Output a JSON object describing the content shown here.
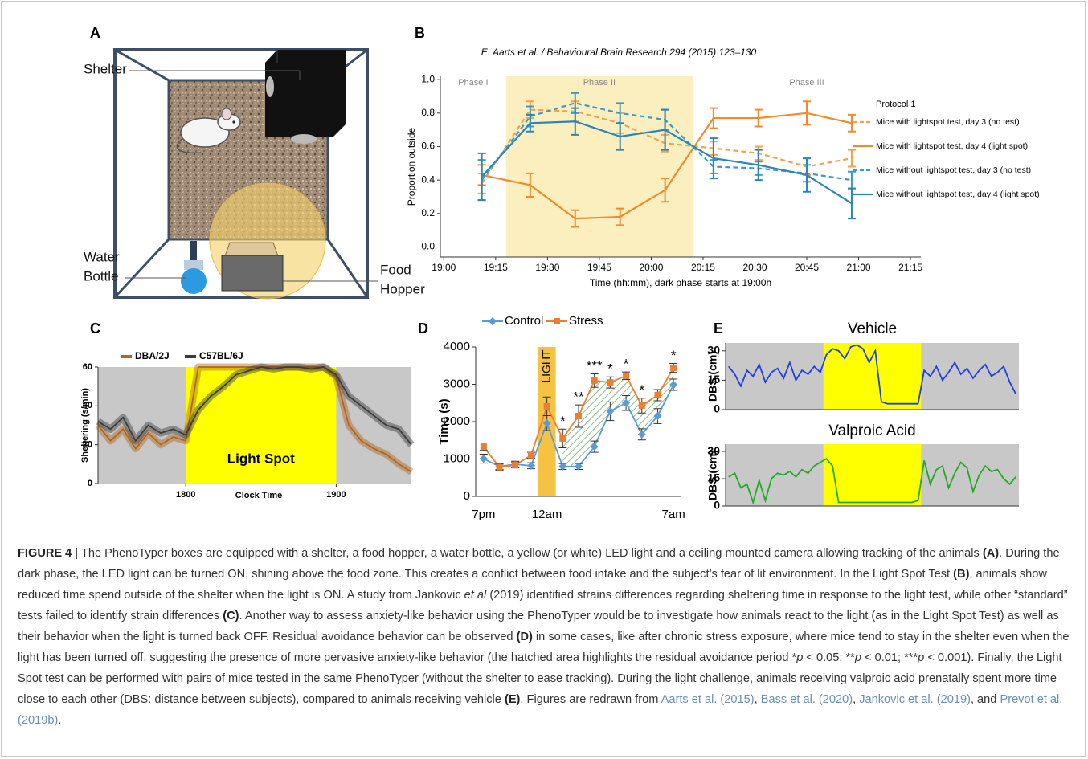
{
  "panel_labels": [
    "A",
    "B",
    "C",
    "D",
    "E"
  ],
  "panel_a": {
    "shelter": "Shelter",
    "water_bottle": [
      "Water",
      "Bottle"
    ],
    "food_hopper": [
      "Food",
      "Hopper"
    ]
  },
  "chart_data": [
    {
      "type": "line",
      "subtitle": "E. Aarts et al. / Behavioural Brain Research 294 (2015) 123–130",
      "xlabel": "Time (hh:mm), dark phase starts at 19:00h",
      "ylabel": "Proportion outside",
      "legend_title": "Protocol 1",
      "phases": [
        {
          "label": "Phase I"
        },
        {
          "label": "Phase II",
          "range": [
            1158,
            1212
          ]
        },
        {
          "label": "Phase III"
        }
      ],
      "x": [
        1151,
        1165,
        1178,
        1191,
        1204,
        1218,
        1231,
        1245,
        1258
      ],
      "xlim": [
        1139,
        1278
      ],
      "xticks": [
        {
          "value": 1140,
          "label": "19:00"
        },
        {
          "value": 1155,
          "label": "19:15"
        },
        {
          "value": 1170,
          "label": "19:30"
        },
        {
          "value": 1185,
          "label": "19:45"
        },
        {
          "value": 1200,
          "label": "20:00"
        },
        {
          "value": 1215,
          "label": "20:15"
        },
        {
          "value": 1230,
          "label": "20:30"
        },
        {
          "value": 1245,
          "label": "20:45"
        },
        {
          "value": 1260,
          "label": "21:00"
        },
        {
          "value": 1275,
          "label": "21:15"
        }
      ],
      "ylim": [
        -0.06,
        1.02
      ],
      "yticks": [
        {
          "value": 0,
          "label": "0.0"
        },
        0.2,
        0.4,
        0.6,
        0.8,
        {
          "value": 1,
          "label": "1.0"
        }
      ],
      "series": [
        {
          "name": "Mice with lightspot test, day 3 (no test)",
          "color": "#f5a04c",
          "dashed": true,
          "values": [
            0.38,
            0.82,
            0.81,
            0.74,
            0.62,
            0.59,
            0.56,
            0.48,
            0.53
          ],
          "errors": [
            0.06,
            0.05,
            0.06,
            0.06,
            0.05,
            0.04,
            0.04,
            0.05,
            0.05
          ]
        },
        {
          "name": "Mice with lightspot test, day 4 (light spot)",
          "color": "#f08a2b",
          "dashed": false,
          "values": [
            0.43,
            0.37,
            0.17,
            0.18,
            0.34,
            0.77,
            0.77,
            0.8,
            0.74
          ],
          "errors": [
            0.06,
            0.07,
            0.05,
            0.05,
            0.07,
            0.06,
            0.05,
            0.07,
            0.05
          ]
        },
        {
          "name": "Mice without lightspot test, day 3 (no test)",
          "color": "#3a9cc6",
          "dashed": true,
          "values": [
            0.4,
            0.78,
            0.86,
            0.8,
            0.76,
            0.48,
            0.47,
            0.44,
            0.4
          ],
          "errors": [
            0.12,
            0.06,
            0.06,
            0.06,
            0.06,
            0.04,
            0.04,
            0.05,
            0.05
          ]
        },
        {
          "name": "Mice without lightspot test, day 4 (light spot)",
          "color": "#2a86b8",
          "dashed": false,
          "values": [
            0.42,
            0.74,
            0.75,
            0.66,
            0.7,
            0.53,
            0.49,
            0.43,
            0.26
          ],
          "errors": [
            0.14,
            0.05,
            0.08,
            0.08,
            0.12,
            0.12,
            0.09,
            0.1,
            0.09
          ]
        }
      ]
    },
    {
      "type": "line",
      "xlabel": "Clock Time",
      "ylabel": "Sheltering (s/min)",
      "highlight": {
        "label": "Light Spot",
        "range": [
          1080,
          1140
        ]
      },
      "x": [
        1045,
        1050,
        1055,
        1060,
        1065,
        1070,
        1075,
        1080,
        1085,
        1090,
        1095,
        1100,
        1105,
        1110,
        1115,
        1120,
        1125,
        1130,
        1135,
        1140,
        1145,
        1150,
        1155,
        1160,
        1165,
        1170
      ],
      "xlim": [
        1045,
        1170
      ],
      "xticks": [
        {
          "value": 1080,
          "label": "1800"
        },
        {
          "value": 1140,
          "label": "1900"
        }
      ],
      "ylim": [
        0,
        60
      ],
      "yticks": [
        0,
        20,
        40,
        60
      ],
      "series": [
        {
          "name": "DBA/2J",
          "color": "#b0651e",
          "values": [
            30,
            22,
            28,
            18,
            26,
            20,
            24,
            22,
            60,
            60,
            60,
            60,
            60,
            60,
            60,
            60,
            60,
            60,
            60,
            55,
            30,
            22,
            18,
            15,
            10,
            6
          ]
        },
        {
          "name": "C57BL/6J",
          "color": "#3c3c3c",
          "values": [
            32,
            28,
            34,
            22,
            30,
            26,
            28,
            25,
            38,
            45,
            50,
            56,
            58,
            60,
            59,
            60,
            60,
            59,
            60,
            56,
            45,
            40,
            35,
            30,
            28,
            20
          ]
        }
      ]
    },
    {
      "type": "line",
      "ylabel": "Time (s)",
      "highlight": {
        "label": "LIGHT",
        "index": 4
      },
      "categories": [
        "7pm",
        null,
        null,
        null,
        "12am",
        null,
        null,
        null,
        null,
        null,
        null,
        null,
        "7am"
      ],
      "ylim": [
        0,
        4000
      ],
      "yticks": [
        0,
        1000,
        2000,
        3000,
        4000
      ],
      "significance": [
        null,
        null,
        null,
        null,
        null,
        "*",
        "**",
        "***",
        "*",
        "*",
        "*",
        null,
        "*"
      ],
      "series": [
        {
          "name": "Control",
          "color": "#5b9bd5",
          "marker": "diamond",
          "values": [
            1010,
            800,
            860,
            820,
            1960,
            800,
            800,
            1330,
            2280,
            2500,
            1660,
            2150,
            2990
          ],
          "errors": [
            120,
            80,
            80,
            80,
            200,
            80,
            80,
            150,
            250,
            200,
            150,
            200,
            150
          ]
        },
        {
          "name": "Stress",
          "color": "#ed7d31",
          "marker": "square",
          "values": [
            1330,
            780,
            840,
            1100,
            2410,
            1550,
            2150,
            3100,
            3050,
            3230,
            2430,
            2710,
            3440
          ],
          "errors": [
            100,
            80,
            80,
            80,
            250,
            250,
            300,
            180,
            150,
            100,
            200,
            150,
            120
          ]
        }
      ]
    },
    {
      "type": "line",
      "title": "Vehicle",
      "ylabel": "DBS (cm)",
      "color": "#1f3fe0",
      "ylim": [
        0,
        34
      ],
      "yticks": [
        0,
        15,
        30
      ],
      "values": [
        22,
        18,
        12,
        20,
        17,
        23,
        14,
        19,
        21,
        16,
        24,
        15,
        20,
        18,
        22,
        19,
        28,
        31,
        30,
        26,
        32,
        33,
        31,
        24,
        30,
        4,
        3,
        3,
        3,
        3,
        3,
        3,
        20,
        17,
        22,
        15,
        19,
        24,
        18,
        21,
        16,
        20,
        23,
        17,
        19,
        22,
        14,
        8
      ]
    },
    {
      "type": "line",
      "title": "Valproic Acid",
      "ylabel": "DBS (cm)",
      "color": "#22aa22",
      "ylim": [
        0,
        34
      ],
      "yticks": [
        0,
        15,
        30
      ],
      "values": [
        16,
        18,
        10,
        12,
        2,
        14,
        3,
        15,
        18,
        17,
        19,
        16,
        20,
        18,
        22,
        24,
        26,
        22,
        2,
        2,
        2,
        2,
        2,
        2,
        2,
        2,
        2,
        2,
        2,
        2,
        2,
        3,
        25,
        12,
        20,
        22,
        10,
        18,
        24,
        21,
        8,
        17,
        22,
        19,
        20,
        15,
        12,
        16
      ]
    }
  ],
  "caption": {
    "runs": [
      "FIGURE 4",
      " | The PhenoTyper boxes are equipped with a shelter, a food hopper, a water bottle, a yellow (or white) LED light and a ceiling mounted camera allowing tracking of the animals ",
      "(A)",
      ". During the dark phase, the LED light can be turned ON, shining above the food zone. This creates a conflict between food intake and the subject’s fear of lit environment. In the Light Spot Test ",
      "(B)",
      ", animals show reduced time spend outside of the shelter when the light is ON. A study from Jankovic ",
      "et al",
      " (2019) identified strains differences regarding sheltering time in response to the light test, while other “standard” tests failed to identify strain differences ",
      "(C)",
      ". Another way to assess anxiety-like behavior using the PhenoTyper would be to investigate how animals react to the light (as in the Light Spot Test) as well as their behavior when the light is turned back OFF. Residual avoidance behavior can be observed ",
      "(D)",
      " in some cases, like after chronic stress exposure, where mice tend to stay in the shelter even when the light has been turned off, suggesting the presence of more pervasive anxiety-like behavior (the hatched area highlights the residual avoidance period *",
      "p",
      " < 0.05; **",
      "p",
      " < 0.01; ***",
      "p",
      " < 0.001). Finally, the Light Spot test can be performed with pairs of mice tested in the same PhenoTyper (without the shelter to ease tracking). During the light challenge, animals receiving valproic acid prenatally spent more time close to each other (DBS: distance between subjects), compared to animals receiving vehicle ",
      "(E)",
      ". Figures are redrawn from ",
      "Aarts et al. (2015)",
      ", ",
      "Bass et al. (2020)",
      ", ",
      "Jankovic et al. (2019)",
      ", and ",
      "Prevot et al. (2019b)",
      "."
    ]
  }
}
